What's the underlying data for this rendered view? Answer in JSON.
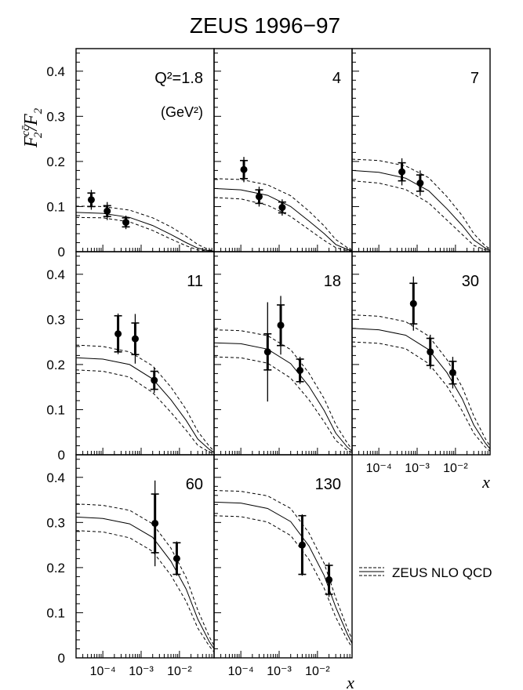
{
  "title": "ZEUS 1996−97",
  "ylabel": {
    "main": "F",
    "sub": "2",
    "sup": "cc̄",
    "rest": "/F",
    "sub2": "2"
  },
  "xlabel": "x",
  "legend": {
    "label": "ZEUS NLO QCD",
    "placement": "bottom-right"
  },
  "q2_unit": "(GeV²)",
  "ytick_labels": [
    "0",
    "0.1",
    "0.2",
    "0.3",
    "0.4"
  ],
  "xtick_labels": [
    "10⁻⁴",
    "10⁻³",
    "10⁻²"
  ],
  "chart_data": {
    "type": "scatter",
    "title": "ZEUS 1996−97",
    "xlabel": "x",
    "ylabel": "F2cc/F2",
    "xscale": "log",
    "xlim": [
      2e-05,
      0.08
    ],
    "ylim": [
      0,
      0.45
    ],
    "yticks": [
      0,
      0.1,
      0.2,
      0.3,
      0.4
    ],
    "xticks": [
      0.0001,
      0.001,
      0.01
    ],
    "panels": [
      {
        "q2_label": "Q²=1.8",
        "points": [
          {
            "x": 5e-05,
            "y": 0.115,
            "stat": 0.015,
            "tot": 0.022
          },
          {
            "x": 0.00013,
            "y": 0.09,
            "stat": 0.012,
            "tot": 0.02
          },
          {
            "x": 0.0004,
            "y": 0.065,
            "stat": 0.01,
            "tot": 0.015
          }
        ],
        "nlo": {
          "x": [
            2e-05,
            0.0001,
            0.0005,
            0.002,
            0.006,
            0.015,
            0.03,
            0.06,
            0.08
          ],
          "central": [
            0.087,
            0.085,
            0.076,
            0.058,
            0.038,
            0.02,
            0.008,
            0.002,
            0.001
          ],
          "upper": [
            0.101,
            0.1,
            0.092,
            0.075,
            0.055,
            0.034,
            0.016,
            0.004,
            0.002
          ],
          "lower": [
            0.076,
            0.075,
            0.066,
            0.047,
            0.028,
            0.013,
            0.004,
            0.001,
            0.0005
          ]
        }
      },
      {
        "q2_label": "4",
        "points": [
          {
            "x": 0.00012,
            "y": 0.182,
            "stat": 0.02,
            "tot": 0.028
          },
          {
            "x": 0.0003,
            "y": 0.122,
            "stat": 0.015,
            "tot": 0.022
          },
          {
            "x": 0.0012,
            "y": 0.098,
            "stat": 0.012,
            "tot": 0.018
          }
        ],
        "nlo": {
          "x": [
            2e-05,
            0.0001,
            0.0005,
            0.002,
            0.006,
            0.015,
            0.03,
            0.06,
            0.08
          ],
          "central": [
            0.14,
            0.137,
            0.125,
            0.1,
            0.068,
            0.04,
            0.016,
            0.005,
            0.002
          ],
          "upper": [
            0.162,
            0.16,
            0.148,
            0.124,
            0.09,
            0.057,
            0.027,
            0.009,
            0.004
          ],
          "lower": [
            0.12,
            0.117,
            0.103,
            0.078,
            0.049,
            0.025,
            0.009,
            0.002,
            0.001
          ]
        }
      },
      {
        "q2_label": "7",
        "points": [
          {
            "x": 0.0004,
            "y": 0.177,
            "stat": 0.02,
            "tot": 0.03
          },
          {
            "x": 0.0012,
            "y": 0.152,
            "stat": 0.018,
            "tot": 0.028
          }
        ],
        "nlo": {
          "x": [
            2e-05,
            0.0001,
            0.0005,
            0.002,
            0.006,
            0.015,
            0.03,
            0.06,
            0.08
          ],
          "central": [
            0.18,
            0.176,
            0.163,
            0.135,
            0.095,
            0.058,
            0.026,
            0.008,
            0.003
          ],
          "upper": [
            0.205,
            0.202,
            0.19,
            0.164,
            0.122,
            0.08,
            0.04,
            0.013,
            0.006
          ],
          "lower": [
            0.157,
            0.152,
            0.138,
            0.108,
            0.07,
            0.038,
            0.014,
            0.004,
            0.002
          ]
        }
      },
      {
        "q2_label": "11",
        "points": [
          {
            "x": 0.00025,
            "y": 0.268,
            "stat": 0.04,
            "tot": 0.045
          },
          {
            "x": 0.0007,
            "y": 0.257,
            "stat": 0.035,
            "tot": 0.055
          },
          {
            "x": 0.0022,
            "y": 0.165,
            "stat": 0.02,
            "tot": 0.028
          }
        ],
        "nlo": {
          "x": [
            2e-05,
            0.0001,
            0.0005,
            0.002,
            0.006,
            0.015,
            0.03,
            0.06,
            0.08
          ],
          "central": [
            0.215,
            0.212,
            0.2,
            0.168,
            0.122,
            0.076,
            0.035,
            0.012,
            0.005
          ],
          "upper": [
            0.243,
            0.24,
            0.228,
            0.197,
            0.15,
            0.1,
            0.052,
            0.019,
            0.008
          ],
          "lower": [
            0.188,
            0.185,
            0.172,
            0.138,
            0.094,
            0.054,
            0.021,
            0.006,
            0.003
          ]
        }
      },
      {
        "q2_label": "18",
        "points": [
          {
            "x": 0.0005,
            "y": 0.228,
            "stat": 0.04,
            "tot": 0.11
          },
          {
            "x": 0.0011,
            "y": 0.287,
            "stat": 0.045,
            "tot": 0.065
          },
          {
            "x": 0.0035,
            "y": 0.187,
            "stat": 0.025,
            "tot": 0.03
          }
        ],
        "nlo": {
          "x": [
            2e-05,
            0.0001,
            0.0005,
            0.002,
            0.006,
            0.015,
            0.03,
            0.06,
            0.08
          ],
          "central": [
            0.248,
            0.246,
            0.234,
            0.202,
            0.152,
            0.098,
            0.048,
            0.017,
            0.008
          ],
          "upper": [
            0.277,
            0.275,
            0.264,
            0.233,
            0.181,
            0.124,
            0.067,
            0.026,
            0.012
          ],
          "lower": [
            0.217,
            0.215,
            0.203,
            0.17,
            0.122,
            0.073,
            0.032,
            0.01,
            0.005
          ]
        }
      },
      {
        "q2_label": "30",
        "points": [
          {
            "x": 0.0008,
            "y": 0.335,
            "stat": 0.045,
            "tot": 0.06
          },
          {
            "x": 0.0022,
            "y": 0.228,
            "stat": 0.03,
            "tot": 0.038
          },
          {
            "x": 0.0085,
            "y": 0.182,
            "stat": 0.025,
            "tot": 0.035
          }
        ],
        "nlo": {
          "x": [
            2e-05,
            0.0001,
            0.0005,
            0.002,
            0.006,
            0.015,
            0.03,
            0.06,
            0.08
          ],
          "central": [
            0.28,
            0.277,
            0.265,
            0.233,
            0.182,
            0.124,
            0.066,
            0.026,
            0.013
          ],
          "upper": [
            0.31,
            0.307,
            0.295,
            0.263,
            0.211,
            0.15,
            0.086,
            0.036,
            0.019
          ],
          "lower": [
            0.25,
            0.247,
            0.235,
            0.202,
            0.152,
            0.097,
            0.048,
            0.017,
            0.008
          ]
        }
      },
      {
        "q2_label": "60",
        "points": [
          {
            "x": 0.0023,
            "y": 0.298,
            "stat": 0.065,
            "tot": 0.095
          },
          {
            "x": 0.0085,
            "y": 0.22,
            "stat": 0.035,
            "tot": 0.038
          }
        ],
        "nlo": {
          "x": [
            2e-05,
            0.0001,
            0.0005,
            0.002,
            0.006,
            0.015,
            0.03,
            0.06,
            0.08
          ],
          "central": [
            0.312,
            0.309,
            0.297,
            0.267,
            0.214,
            0.152,
            0.086,
            0.036,
            0.02
          ],
          "upper": [
            0.341,
            0.338,
            0.327,
            0.297,
            0.243,
            0.178,
            0.106,
            0.047,
            0.027
          ],
          "lower": [
            0.282,
            0.279,
            0.266,
            0.236,
            0.183,
            0.125,
            0.066,
            0.026,
            0.013
          ]
        }
      },
      {
        "q2_label": "130",
        "points": [
          {
            "x": 0.004,
            "y": 0.25,
            "stat": 0.065,
            "tot": 0.068
          },
          {
            "x": 0.02,
            "y": 0.173,
            "stat": 0.032,
            "tot": 0.038
          }
        ],
        "nlo": {
          "x": [
            2e-05,
            0.0001,
            0.0005,
            0.002,
            0.006,
            0.015,
            0.03,
            0.06,
            0.08
          ],
          "central": [
            0.345,
            0.343,
            0.331,
            0.302,
            0.248,
            0.182,
            0.112,
            0.053,
            0.032
          ],
          "upper": [
            0.371,
            0.369,
            0.359,
            0.331,
            0.277,
            0.209,
            0.133,
            0.066,
            0.041
          ],
          "lower": [
            0.315,
            0.313,
            0.301,
            0.271,
            0.218,
            0.154,
            0.09,
            0.04,
            0.023
          ]
        }
      }
    ]
  }
}
